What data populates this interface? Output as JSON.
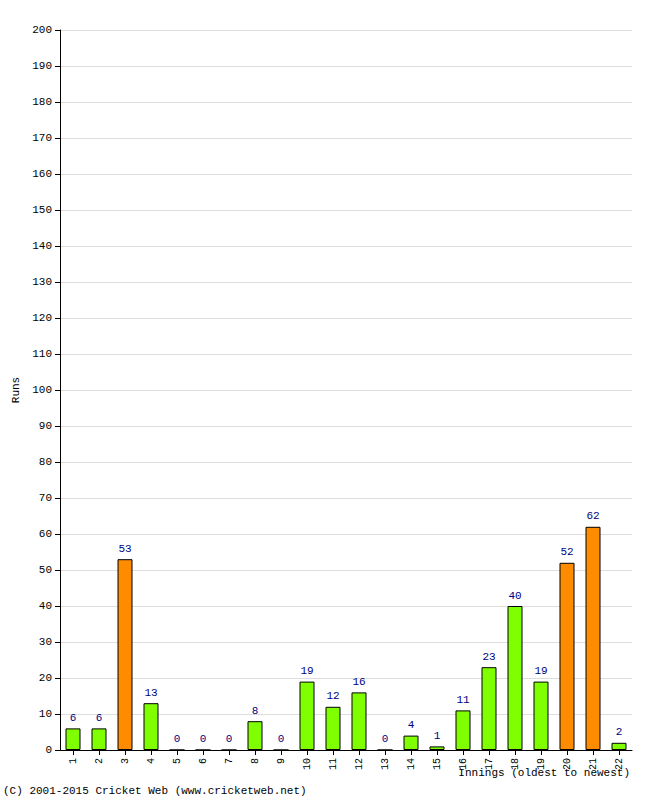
{
  "chart_data": {
    "type": "bar",
    "categories": [
      "1",
      "2",
      "3",
      "4",
      "5",
      "6",
      "7",
      "8",
      "9",
      "10",
      "11",
      "12",
      "13",
      "14",
      "15",
      "16",
      "17",
      "18",
      "19",
      "20",
      "21",
      "22"
    ],
    "values": [
      6,
      6,
      53,
      13,
      0,
      0,
      0,
      8,
      0,
      19,
      12,
      16,
      0,
      4,
      1,
      11,
      23,
      40,
      19,
      52,
      62,
      2
    ],
    "colors": [
      "#80ff00",
      "#80ff00",
      "#ff8c00",
      "#80ff00",
      "#80ff00",
      "#80ff00",
      "#80ff00",
      "#80ff00",
      "#80ff00",
      "#80ff00",
      "#80ff00",
      "#80ff00",
      "#80ff00",
      "#80ff00",
      "#80ff00",
      "#80ff00",
      "#80ff00",
      "#80ff00",
      "#80ff00",
      "#ff8c00",
      "#ff8c00",
      "#80ff00"
    ],
    "ylim": [
      0,
      200
    ],
    "yticks": [
      0,
      10,
      20,
      30,
      40,
      50,
      60,
      70,
      80,
      90,
      100,
      110,
      120,
      130,
      140,
      150,
      160,
      170,
      180,
      190,
      200
    ],
    "grid": true,
    "data_labels": true,
    "y_label": "Runs",
    "x_label": "Innings (oldest to newest)",
    "annotations": [
      "(C) 2001-2015 Cricket Web (www.cricketweb.net)"
    ]
  }
}
